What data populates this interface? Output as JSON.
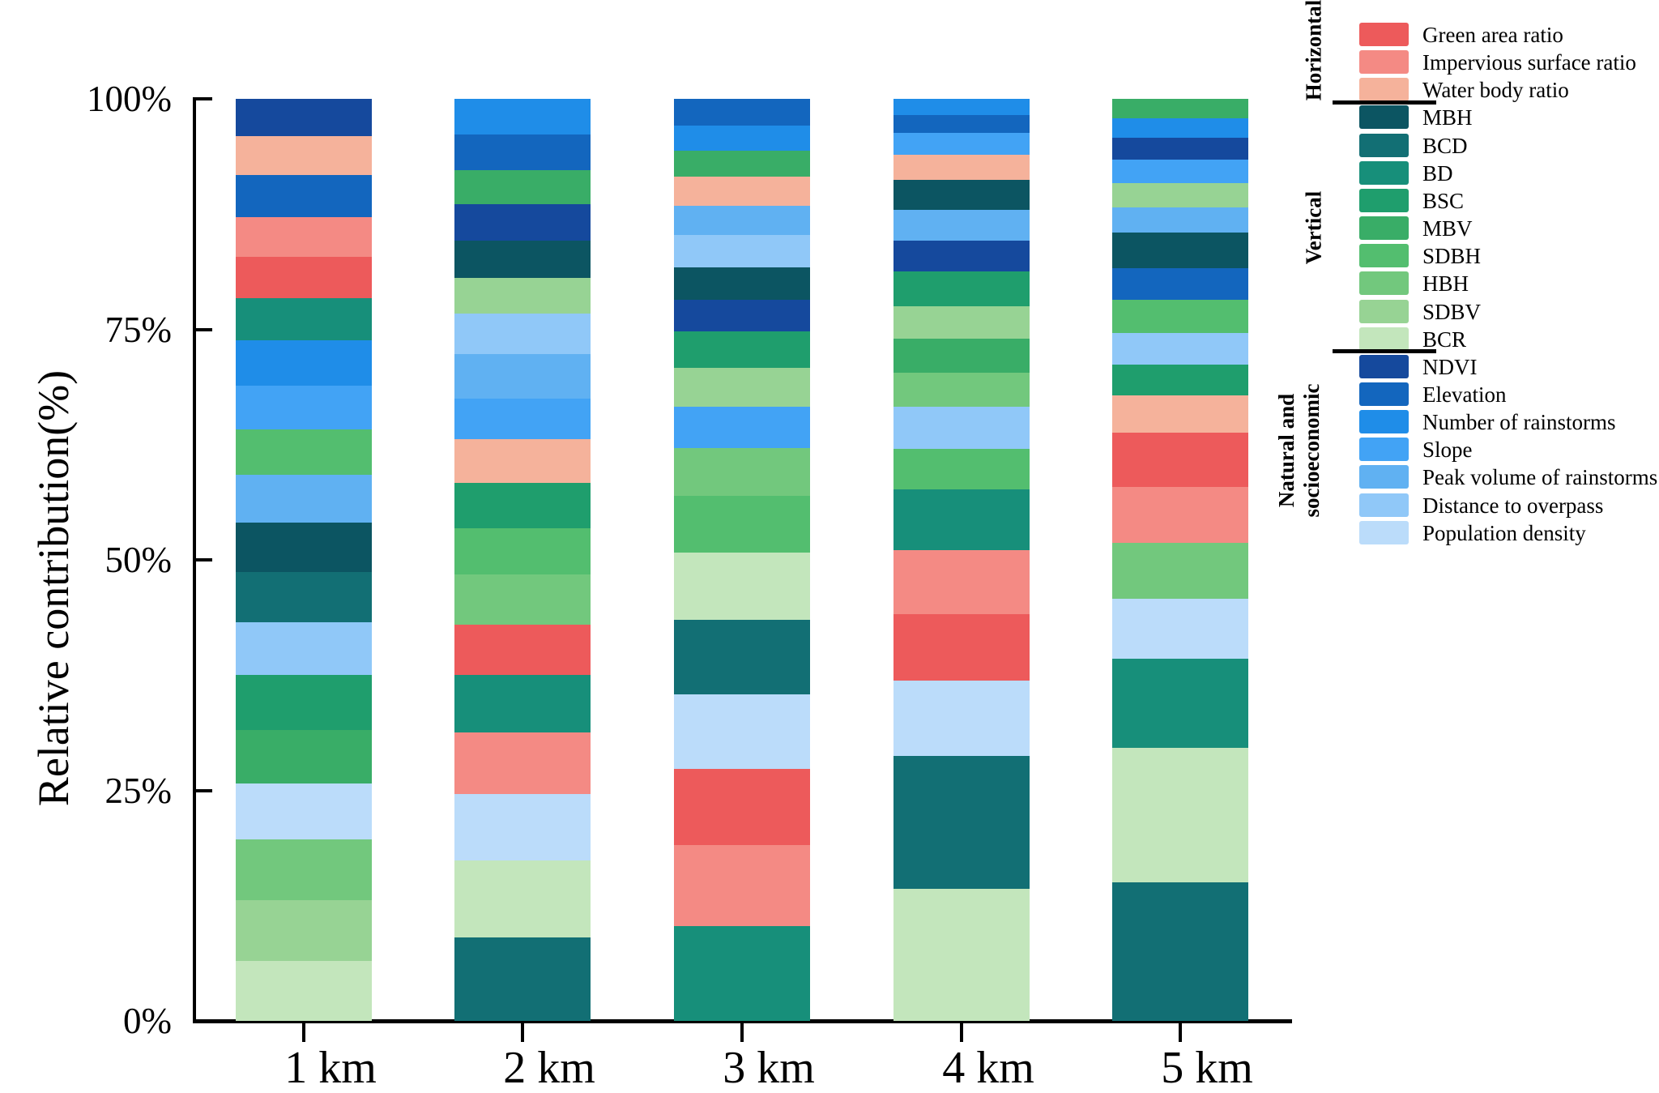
{
  "chart_data": {
    "type": "bar",
    "stacked": true,
    "title": "",
    "xlabel": "",
    "ylabel": "Relative contribution(%)",
    "unit": "%",
    "ylim": [
      0,
      100
    ],
    "grid": false,
    "legend_position": "right",
    "ytick_labels_top_to_bottom": [
      "100%",
      "75%",
      "50%",
      "25%",
      "0%"
    ],
    "categories": [
      "1 km",
      "2 km",
      "3 km",
      "4 km",
      "5 km"
    ],
    "series_colors": {
      "Green area ratio": "#ED5A5B",
      "Impervious surface ratio": "#F48A84",
      "Water body ratio": "#F5B29B",
      "MBH": "#0C5562",
      "BCD": "#126F74",
      "BD": "#178F7A",
      "BSC": "#1F9E6D",
      "MBV": "#39AD67",
      "SDBH": "#53BE6F",
      "HBH": "#72C87D",
      "SDBV": "#97D394",
      "BCR": "#C3E6BC",
      "NDVI": "#15499D",
      "Elevation": "#1366BE",
      "Number of rainstorms": "#1F8DE8",
      "Slope": "#42A3F5",
      "Peak volume of rainstorms": "#60B1F2",
      "Distance to overpass": "#90C8F8",
      "Population density": "#BBDCFA"
    },
    "bars": [
      {
        "category": "1 km",
        "segments_top_to_bottom": [
          [
            "NDVI",
            4.0
          ],
          [
            "Water body ratio",
            4.3
          ],
          [
            "Elevation",
            4.5
          ],
          [
            "Impervious surface ratio",
            4.3
          ],
          [
            "Green area ratio",
            4.5
          ],
          [
            "BD",
            4.6
          ],
          [
            "Number of rainstorms",
            4.9
          ],
          [
            "Slope",
            4.8
          ],
          [
            "SDBH",
            4.9
          ],
          [
            "Peak volume of rainstorms",
            5.2
          ],
          [
            "MBH",
            5.3
          ],
          [
            "BCD",
            5.5
          ],
          [
            "Distance to overpass",
            5.7
          ],
          [
            "BSC",
            6.0
          ],
          [
            "MBV",
            5.8
          ],
          [
            "Population density",
            6.0
          ],
          [
            "HBH",
            6.6
          ],
          [
            "SDBV",
            6.6
          ],
          [
            "BCR",
            6.5
          ]
        ]
      },
      {
        "category": "2 km",
        "segments_top_to_bottom": [
          [
            "Number of rainstorms",
            3.9
          ],
          [
            "Elevation",
            3.8
          ],
          [
            "MBV",
            3.7
          ],
          [
            "NDVI",
            4.0
          ],
          [
            "MBH",
            4.0
          ],
          [
            "SDBV",
            3.9
          ],
          [
            "Distance to overpass",
            4.4
          ],
          [
            "Peak volume of rainstorms",
            4.8
          ],
          [
            "Slope",
            4.4
          ],
          [
            "Water body ratio",
            4.8
          ],
          [
            "BSC",
            4.9
          ],
          [
            "SDBH",
            5.0
          ],
          [
            "HBH",
            5.4
          ],
          [
            "Green area ratio",
            5.5
          ],
          [
            "BD",
            6.2
          ],
          [
            "Impervious surface ratio",
            6.7
          ],
          [
            "Population density",
            7.2
          ],
          [
            "BCR",
            8.4
          ],
          [
            "BCD",
            9.0
          ]
        ]
      },
      {
        "category": "3 km",
        "segments_top_to_bottom": [
          [
            "Elevation",
            2.9
          ],
          [
            "Number of rainstorms",
            2.7
          ],
          [
            "MBV",
            2.8
          ],
          [
            "Water body ratio",
            3.2
          ],
          [
            "Peak volume of rainstorms",
            3.2
          ],
          [
            "Distance to overpass",
            3.5
          ],
          [
            "MBH",
            3.5
          ],
          [
            "NDVI",
            3.4
          ],
          [
            "BSC",
            4.0
          ],
          [
            "SDBV",
            4.2
          ],
          [
            "Slope",
            4.5
          ],
          [
            "HBH",
            5.2
          ],
          [
            "SDBH",
            6.1
          ],
          [
            "BCR",
            7.3
          ],
          [
            "BCD",
            8.1
          ],
          [
            "Population density",
            8.1
          ],
          [
            "Green area ratio",
            8.2
          ],
          [
            "Impervious surface ratio",
            8.8
          ],
          [
            "BD",
            10.3
          ]
        ]
      },
      {
        "category": "4 km",
        "segments_top_to_bottom": [
          [
            "Number of rainstorms",
            1.8
          ],
          [
            "Elevation",
            1.9
          ],
          [
            "Slope",
            2.4
          ],
          [
            "Water body ratio",
            2.7
          ],
          [
            "MBH",
            3.2
          ],
          [
            "Peak volume of rainstorms",
            3.4
          ],
          [
            "NDVI",
            3.3
          ],
          [
            "BSC",
            3.8
          ],
          [
            "SDBV",
            3.5
          ],
          [
            "MBV",
            3.7
          ],
          [
            "HBH",
            3.7
          ],
          [
            "Distance to overpass",
            4.6
          ],
          [
            "SDBH",
            4.4
          ],
          [
            "BD",
            6.6
          ],
          [
            "Impervious surface ratio",
            6.9
          ],
          [
            "Green area ratio",
            7.2
          ],
          [
            "Population density",
            8.2
          ],
          [
            "BCD",
            14.4
          ],
          [
            "BCR",
            14.3
          ]
        ]
      },
      {
        "category": "5 km",
        "segments_top_to_bottom": [
          [
            "MBV",
            2.1
          ],
          [
            "Number of rainstorms",
            2.1
          ],
          [
            "NDVI",
            2.4
          ],
          [
            "Slope",
            2.5
          ],
          [
            "SDBV",
            2.7
          ],
          [
            "Peak volume of rainstorms",
            2.7
          ],
          [
            "MBH",
            3.9
          ],
          [
            "Elevation",
            3.4
          ],
          [
            "SDBH",
            3.6
          ],
          [
            "Distance to overpass",
            3.4
          ],
          [
            "BSC",
            3.4
          ],
          [
            "Water body ratio",
            4.0
          ],
          [
            "Green area ratio",
            5.9
          ],
          [
            "Impervious surface ratio",
            6.1
          ],
          [
            "HBH",
            6.0
          ],
          [
            "Population density",
            6.5
          ],
          [
            "BD",
            9.7
          ],
          [
            "BCR",
            14.6
          ],
          [
            "BCD",
            15.0
          ]
        ]
      }
    ]
  },
  "legend": {
    "groups": [
      {
        "label": "Horizontal",
        "items": [
          "Green area ratio",
          "Impervious surface ratio",
          "Water body ratio"
        ]
      },
      {
        "label": "Vertical",
        "items": [
          "MBH",
          "BCD",
          "BD",
          "BSC",
          "MBV",
          "SDBH",
          "HBH",
          "SDBV",
          "BCR"
        ]
      },
      {
        "label": "Natural and socioeconomic",
        "items": [
          "NDVI",
          "Elevation",
          "Number of rainstorms",
          "Slope",
          "Peak volume of rainstorms",
          "Distance to overpass",
          "Population density"
        ]
      }
    ]
  }
}
